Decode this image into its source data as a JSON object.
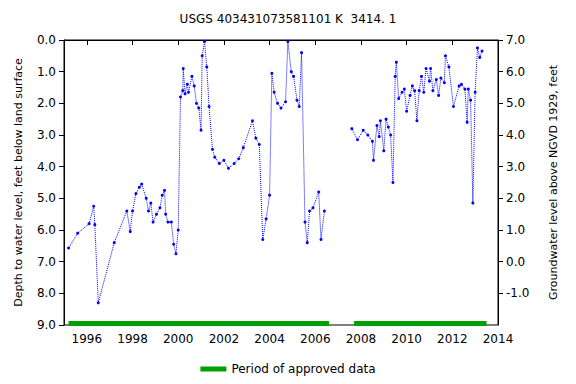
{
  "chart_data": {
    "type": "line",
    "title": "USGS 403431073581101 K  3414. 1",
    "ylabel": "Depth to water level, feet below land surface",
    "y2label": "Groundwater level above NGVD 1929, feet",
    "xlim": [
      1995,
      2014
    ],
    "xticks": [
      1996,
      1998,
      2000,
      2002,
      2004,
      2006,
      2008,
      2010,
      2012,
      2014
    ],
    "ylim": [
      9,
      0
    ],
    "yticks": [
      {
        "value": 0,
        "label": "0.0"
      },
      {
        "value": 1,
        "label": "1.0"
      },
      {
        "value": 2,
        "label": "2.0"
      },
      {
        "value": 3,
        "label": "3.0"
      },
      {
        "value": 4,
        "label": "4.0"
      },
      {
        "value": 5,
        "label": "5.0"
      },
      {
        "value": 6,
        "label": "6.0"
      },
      {
        "value": 7,
        "label": "7.0"
      },
      {
        "value": 8,
        "label": "8.0"
      },
      {
        "value": 9,
        "label": "9.0"
      }
    ],
    "y2lim": [
      -2,
      7
    ],
    "y2ticks": [
      {
        "value": -1,
        "label": "-1.0"
      },
      {
        "value": 0,
        "label": "0.0"
      },
      {
        "value": 1,
        "label": "1.0"
      },
      {
        "value": 2,
        "label": "2.0"
      },
      {
        "value": 3,
        "label": "3.0"
      },
      {
        "value": 4,
        "label": "4.0"
      },
      {
        "value": 5,
        "label": "5.0"
      },
      {
        "value": 6,
        "label": "6.0"
      },
      {
        "value": 7,
        "label": "7.0"
      }
    ],
    "grid": false,
    "legend": "bottom",
    "series": [
      {
        "color": "#0000ff",
        "marker": "circle",
        "line_style": "dotted",
        "x": [
          1995.2,
          1995.6,
          1996.1,
          1996.3,
          1996.35,
          1996.5,
          1997.2,
          1997.75,
          1997.9,
          1998.0,
          1998.15,
          1998.3,
          1998.4,
          1998.6,
          1998.7,
          1998.8,
          1998.9,
          1999.05,
          1999.2,
          1999.3,
          1999.4,
          1999.45,
          1999.55,
          1999.7,
          1999.8,
          1999.9,
          2000.0,
          2000.1,
          2000.2,
          2000.22,
          2000.3,
          2000.4,
          2000.45,
          2000.6,
          2000.7,
          2000.8,
          2000.9,
          2001.0,
          2001.05,
          2001.15,
          2001.25,
          2001.35,
          2001.5,
          2001.6,
          2001.8,
          2002.0,
          2002.2,
          2002.45,
          2002.65,
          2002.85,
          2003.25,
          2003.4,
          2003.55,
          2003.7,
          2003.85,
          2004.0,
          2004.1,
          2004.2,
          2004.35,
          2004.5,
          2004.7,
          2004.8,
          2004.95,
          2005.05,
          2005.2,
          2005.3,
          2005.4,
          2005.55,
          2005.65,
          2005.75,
          2005.9,
          2006.15,
          2006.25,
          2006.4,
          2007.0,
          2007.6,
          2007.85,
          2008.1,
          2008.3,
          2008.5,
          2008.55,
          2008.7,
          2008.8,
          2008.85,
          2009.0,
          2009.1,
          2009.2,
          2009.3,
          2009.4,
          2009.5,
          2009.55,
          2009.65,
          2009.8,
          2009.9,
          2010.0,
          2010.15,
          2010.25,
          2010.35,
          2010.45,
          2010.55,
          2010.65,
          2010.75,
          2010.85,
          2011.0,
          2011.05,
          2011.15,
          2011.3,
          2011.4,
          2011.5,
          2011.65,
          2011.7,
          2011.85,
          2012.05,
          2012.3,
          2012.4,
          2012.55,
          2012.65,
          2012.7,
          2012.8,
          2012.9,
          2013.0,
          2013.1,
          2013.2,
          2013.3
        ],
        "values": [
          6.57,
          6.1,
          5.8,
          5.25,
          5.83,
          8.3,
          6.4,
          5.4,
          6.05,
          5.4,
          4.85,
          4.65,
          4.55,
          5.0,
          5.4,
          5.15,
          5.75,
          5.5,
          5.3,
          4.9,
          4.75,
          5.5,
          5.75,
          5.75,
          6.45,
          6.75,
          6.0,
          1.8,
          1.6,
          0.9,
          1.7,
          1.4,
          1.65,
          1.15,
          1.45,
          2.0,
          2.15,
          2.85,
          0.5,
          0.05,
          0.85,
          2.1,
          3.45,
          3.7,
          3.9,
          3.8,
          4.05,
          3.9,
          3.75,
          3.4,
          2.55,
          3.1,
          3.3,
          6.3,
          5.65,
          4.9,
          1.05,
          1.65,
          2.0,
          2.15,
          1.95,
          0.05,
          1.0,
          1.15,
          1.9,
          2.1,
          0.4,
          5.75,
          6.4,
          5.4,
          5.3,
          4.8,
          6.3,
          5.4,
          null,
          2.8,
          3.15,
          2.85,
          3.0,
          3.2,
          3.8,
          2.7,
          3.05,
          2.55,
          3.5,
          2.5,
          2.75,
          3.0,
          4.5,
          1.15,
          0.7,
          1.85,
          1.65,
          1.55,
          2.25,
          1.75,
          1.45,
          1.6,
          2.55,
          1.6,
          1.15,
          1.65,
          0.9,
          1.3,
          0.9,
          1.6,
          1.25,
          1.75,
          1.2,
          1.35,
          0.5,
          0.85,
          2.1,
          1.45,
          1.4,
          1.55,
          2.6,
          1.55,
          1.9,
          5.15,
          1.65,
          0.25,
          0.55,
          0.35
        ]
      },
      {
        "name": "Period of approved data",
        "color": "#00a000",
        "line_style": "solid",
        "x": [
          1995.2,
          2006.6,
          2007.1,
          2007.7,
          2013.5
        ],
        "values": [
          8.95,
          8.95,
          null,
          8.95,
          8.95
        ]
      }
    ]
  }
}
